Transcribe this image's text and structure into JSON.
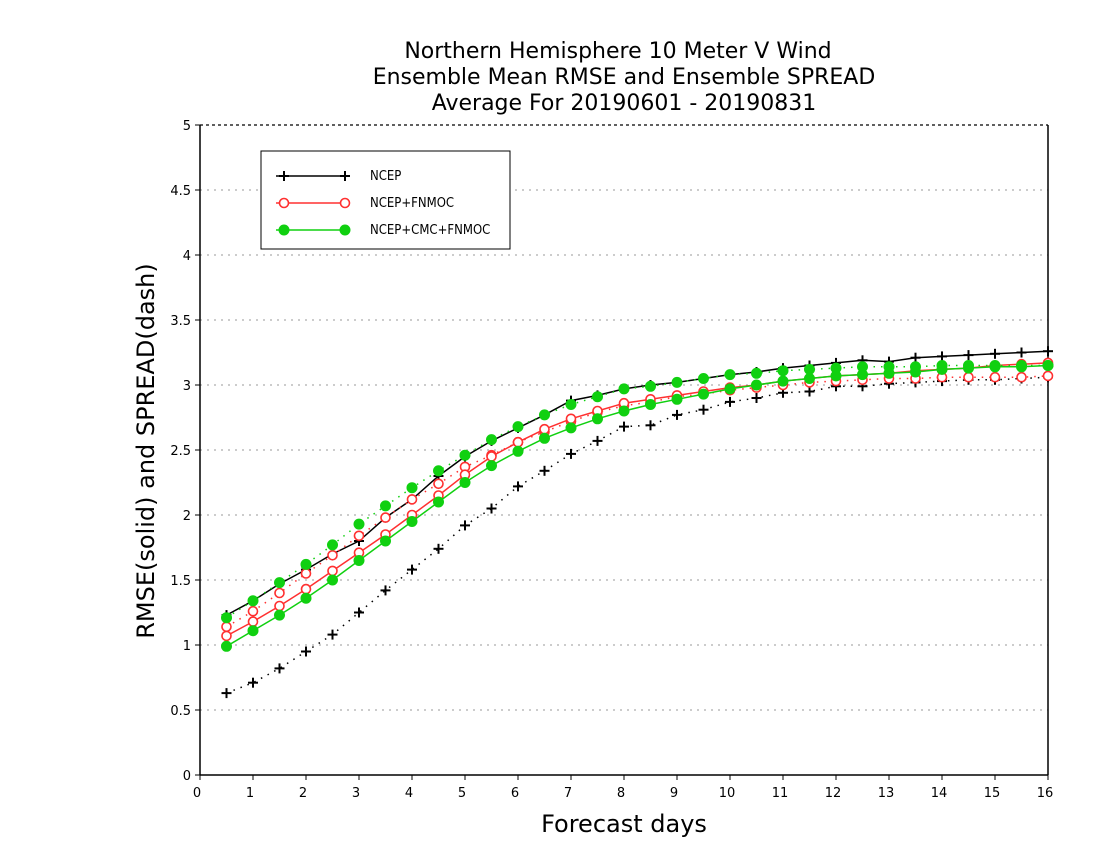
{
  "chart_data": {
    "type": "line",
    "title_lines": [
      "Northern Hemisphere 10 Meter V Wind",
      "Ensemble Mean RMSE and Ensemble SPREAD",
      "Average For 20190601 - 20190831"
    ],
    "xlabel": "Forecast days",
    "ylabel": "RMSE(solid) and SPREAD(dash)",
    "xlim": [
      0,
      16
    ],
    "ylim": [
      0,
      5
    ],
    "x_ticks": [
      "0",
      "1",
      "2",
      "3",
      "4",
      "5",
      "6",
      "7",
      "8",
      "9",
      "10",
      "11",
      "12",
      "13",
      "14",
      "15",
      "16"
    ],
    "y_ticks": [
      "0",
      "0.5",
      "1",
      "1.5",
      "2",
      "2.5",
      "3",
      "3.5",
      "4",
      "4.5",
      "5"
    ],
    "grid": "horizontal dotted",
    "legend_position": "top-left",
    "x": [
      0.5,
      1,
      1.5,
      2,
      2.5,
      3,
      3.5,
      4,
      4.5,
      5,
      5.5,
      6,
      6.5,
      7,
      7.5,
      8,
      8.5,
      9,
      9.5,
      10,
      10.5,
      11,
      11.5,
      12,
      12.5,
      13,
      13.5,
      14,
      14.5,
      15,
      15.5,
      16
    ],
    "series": [
      {
        "name": "NCEP",
        "color": "#000000",
        "marker": "plus",
        "rmse": [
          1.23,
          1.34,
          1.47,
          1.58,
          1.7,
          1.8,
          1.98,
          2.12,
          2.3,
          2.45,
          2.57,
          2.67,
          2.77,
          2.88,
          2.92,
          2.97,
          3.0,
          3.02,
          3.05,
          3.08,
          3.1,
          3.13,
          3.15,
          3.17,
          3.19,
          3.18,
          3.21,
          3.22,
          3.23,
          3.24,
          3.25,
          3.26
        ],
        "spread": [
          0.63,
          0.71,
          0.82,
          0.95,
          1.08,
          1.25,
          1.42,
          1.58,
          1.74,
          1.92,
          2.05,
          2.22,
          2.34,
          2.47,
          2.57,
          2.68,
          2.69,
          2.77,
          2.81,
          2.87,
          2.9,
          2.94,
          2.95,
          2.99,
          2.99,
          3.01,
          3.02,
          3.03,
          3.04,
          3.04,
          3.05,
          3.06
        ]
      },
      {
        "name": "NCEP+FNMOC",
        "color": "#ff3030",
        "marker": "open-circle",
        "rmse": [
          1.07,
          1.18,
          1.3,
          1.43,
          1.57,
          1.71,
          1.85,
          2.0,
          2.15,
          2.31,
          2.45,
          2.56,
          2.66,
          2.74,
          2.8,
          2.86,
          2.89,
          2.92,
          2.95,
          2.98,
          3.0,
          3.03,
          3.05,
          3.07,
          3.08,
          3.09,
          3.11,
          3.12,
          3.13,
          3.15,
          3.16,
          3.17
        ],
        "spread": [
          1.14,
          1.26,
          1.4,
          1.55,
          1.69,
          1.84,
          1.98,
          2.12,
          2.24,
          2.37,
          2.46,
          2.56,
          2.64,
          2.72,
          2.79,
          2.84,
          2.87,
          2.91,
          2.93,
          2.96,
          2.98,
          3.0,
          3.02,
          3.03,
          3.04,
          3.05,
          3.05,
          3.06,
          3.06,
          3.06,
          3.06,
          3.07
        ]
      },
      {
        "name": "NCEP+CMC+FNMOC",
        "color": "#10d010",
        "marker": "filled-circle",
        "rmse": [
          0.99,
          1.11,
          1.23,
          1.36,
          1.5,
          1.65,
          1.8,
          1.95,
          2.1,
          2.25,
          2.38,
          2.49,
          2.59,
          2.67,
          2.74,
          2.8,
          2.85,
          2.89,
          2.93,
          2.97,
          3.0,
          3.03,
          3.05,
          3.07,
          3.08,
          3.09,
          3.1,
          3.12,
          3.13,
          3.14,
          3.14,
          3.15
        ],
        "spread": [
          1.21,
          1.34,
          1.48,
          1.62,
          1.77,
          1.93,
          2.07,
          2.21,
          2.34,
          2.46,
          2.58,
          2.68,
          2.77,
          2.85,
          2.91,
          2.97,
          2.99,
          3.02,
          3.05,
          3.08,
          3.09,
          3.11,
          3.12,
          3.13,
          3.14,
          3.14,
          3.14,
          3.15,
          3.15,
          3.15,
          3.15,
          3.15
        ]
      }
    ]
  }
}
